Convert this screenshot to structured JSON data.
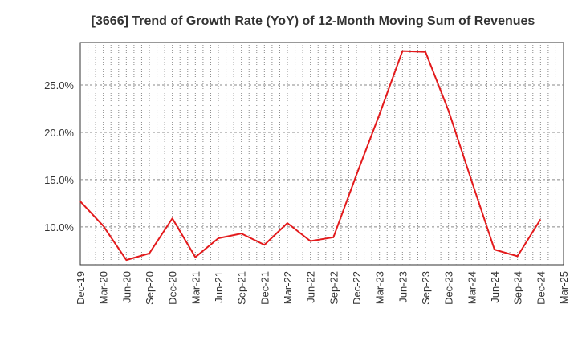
{
  "chart_data": {
    "type": "line",
    "title": "[3666]  Trend of Growth Rate (YoY) of 12-Month Moving Sum of Revenues",
    "xlabel": "",
    "ylabel": "",
    "x_ticks": [
      "Dec-19",
      "Mar-20",
      "Jun-20",
      "Sep-20",
      "Dec-20",
      "Mar-21",
      "Jun-21",
      "Sep-21",
      "Dec-21",
      "Mar-22",
      "Jun-22",
      "Sep-22",
      "Dec-22",
      "Mar-23",
      "Jun-23",
      "Sep-23",
      "Dec-23",
      "Mar-24",
      "Jun-24",
      "Sep-24",
      "Dec-24",
      "Mar-25"
    ],
    "y_ticks": [
      "10.0%",
      "15.0%",
      "20.0%",
      "25.0%"
    ],
    "y_tick_values": [
      10,
      15,
      20,
      25
    ],
    "ylim": [
      6.0,
      29.5
    ],
    "grid": true,
    "series": [
      {
        "color": "#e31a1c",
        "x": [
          "Dec-19",
          "Mar-20",
          "Jun-20",
          "Sep-20",
          "Dec-20",
          "Mar-21",
          "Jun-21",
          "Sep-21",
          "Dec-21",
          "Mar-22",
          "Jun-22",
          "Sep-22",
          "Dec-22",
          "Mar-23",
          "Jun-23",
          "Sep-23",
          "Dec-23",
          "Mar-24",
          "Jun-24",
          "Sep-24",
          "Dec-24"
        ],
        "values": [
          12.7,
          10.1,
          6.5,
          7.2,
          10.9,
          6.8,
          8.8,
          9.3,
          8.1,
          10.4,
          8.5,
          8.9,
          15.5,
          21.9,
          28.6,
          28.5,
          22.3,
          14.9,
          7.6,
          6.9,
          10.8
        ]
      }
    ]
  }
}
